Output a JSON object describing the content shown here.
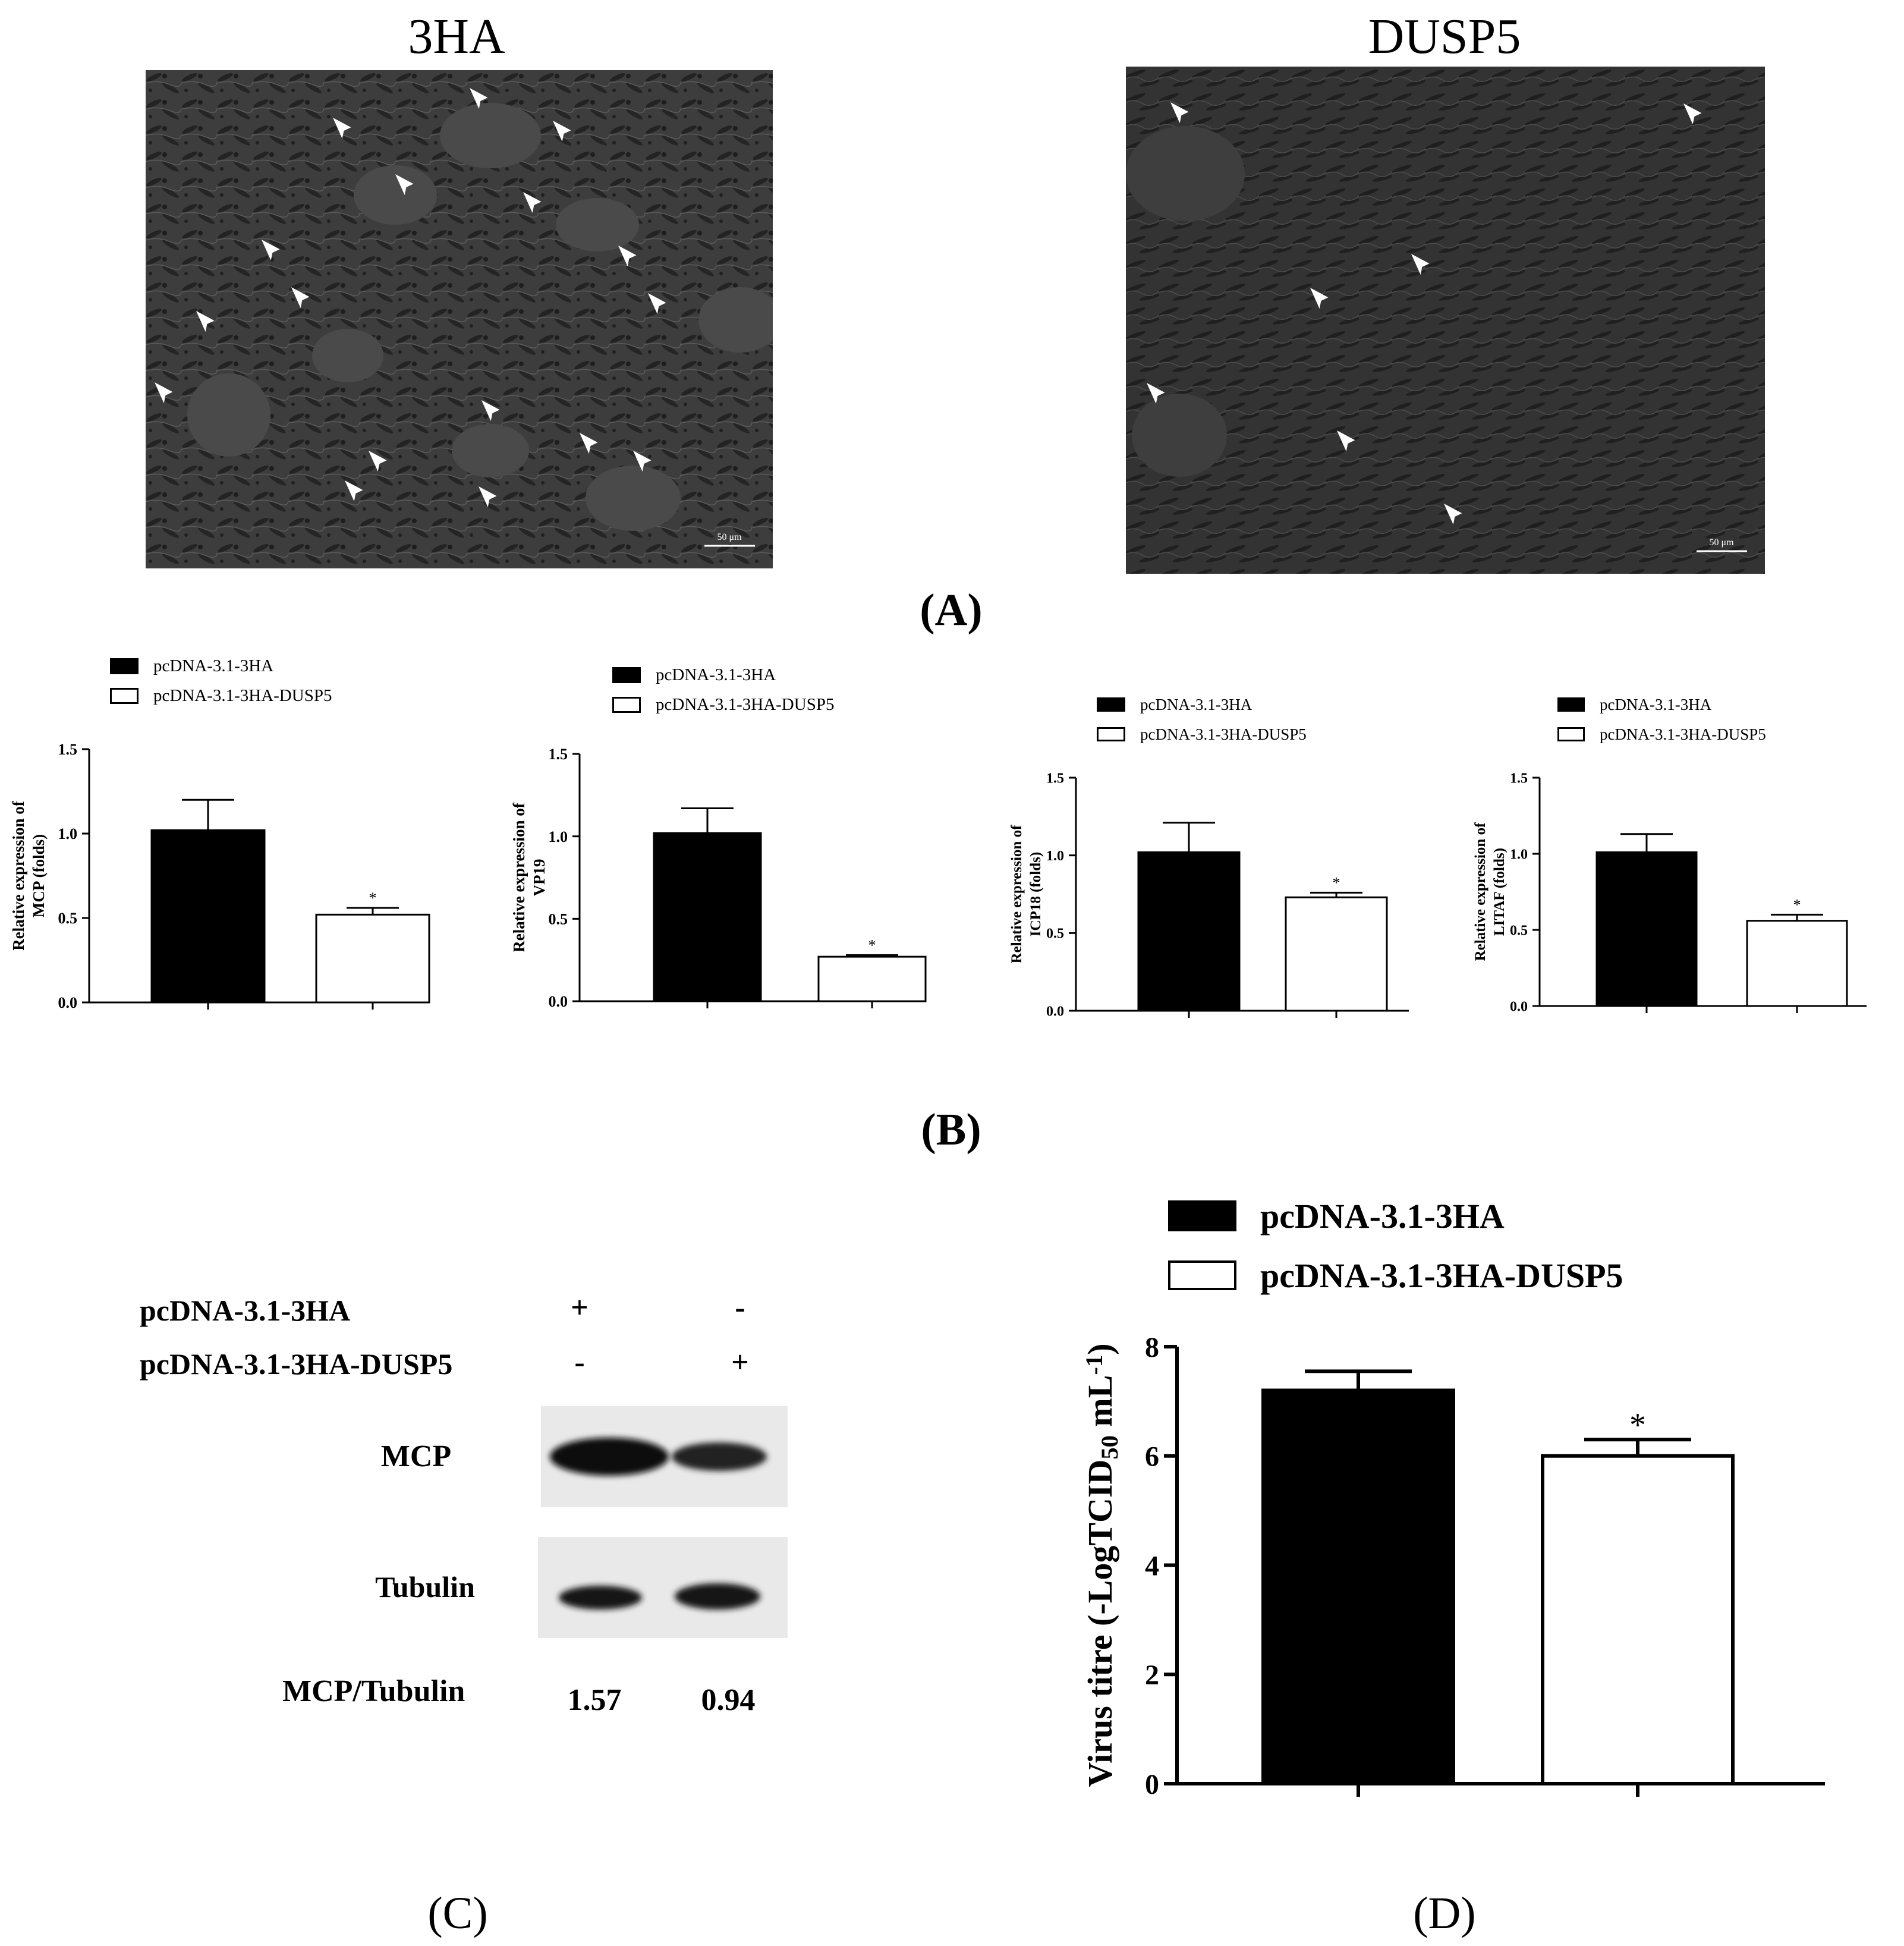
{
  "panel_a": {
    "label": "(A)",
    "images": [
      {
        "title": "3HA",
        "scale_bar": "50 μm"
      },
      {
        "title": "DUSP5",
        "scale_bar": "50 μm"
      }
    ]
  },
  "panel_b": {
    "label": "(B)",
    "legend": [
      "pcDNA-3.1-3HA",
      "pcDNA-3.1-3HA-DUSP5"
    ]
  },
  "panel_c": {
    "label": "(C)",
    "rows": [
      "pcDNA-3.1-3HA",
      "pcDNA-3.1-3HA-DUSP5"
    ],
    "signs": [
      [
        "+",
        "-"
      ],
      [
        "-",
        "+"
      ]
    ],
    "bands": [
      "MCP",
      "Tubulin"
    ],
    "ratio_label": "MCP/Tubulin",
    "ratios": [
      "1.57",
      "0.94"
    ]
  },
  "panel_d": {
    "label": "(D)",
    "legend": [
      "pcDNA-3.1-3HA",
      "pcDNA-3.1-3HA-DUSP5"
    ]
  },
  "colors": {
    "bar1": "#000000",
    "bar2": "#ffffff",
    "micro_bg": "#3b3b3b"
  },
  "chart_data": [
    {
      "type": "bar",
      "panel": "B",
      "categories": [
        "pcDNA-3.1-3HA",
        "pcDNA-3.1-3HA-DUSP5"
      ],
      "values": [
        1.02,
        0.52
      ],
      "errors": [
        0.18,
        0.04
      ],
      "significance": [
        "",
        "*"
      ],
      "ylabel": [
        "Relative expression of",
        "MCP (folds)"
      ],
      "ylim": [
        0,
        1.5
      ],
      "yticks": [
        "0.0",
        "0.5",
        "1.0",
        "1.5"
      ]
    },
    {
      "type": "bar",
      "panel": "B",
      "categories": [
        "pcDNA-3.1-3HA",
        "pcDNA-3.1-3HA-DUSP5"
      ],
      "values": [
        1.02,
        0.27
      ],
      "errors": [
        0.15,
        0.01
      ],
      "significance": [
        "",
        "*"
      ],
      "ylabel": [
        "Relative expression of",
        "VP19"
      ],
      "ylim": [
        0,
        1.5
      ],
      "yticks": [
        "0.0",
        "0.5",
        "1.0",
        "1.5"
      ]
    },
    {
      "type": "bar",
      "panel": "B",
      "categories": [
        "pcDNA-3.1-3HA",
        "pcDNA-3.1-3HA-DUSP5"
      ],
      "values": [
        1.02,
        0.73
      ],
      "errors": [
        0.19,
        0.03
      ],
      "significance": [
        "",
        "*"
      ],
      "ylabel": [
        "Relative expression of",
        "ICP18 (folds)"
      ],
      "ylim": [
        0,
        1.5
      ],
      "yticks": [
        "0.0",
        "0.5",
        "1.0",
        "1.5"
      ]
    },
    {
      "type": "bar",
      "panel": "B",
      "categories": [
        "pcDNA-3.1-3HA",
        "pcDNA-3.1-3HA-DUSP5"
      ],
      "values": [
        1.01,
        0.56
      ],
      "errors": [
        0.12,
        0.04
      ],
      "significance": [
        "",
        "*"
      ],
      "ylabel": [
        "Relative expression of",
        "LITAF (folds)"
      ],
      "ylim": [
        0,
        1.5
      ],
      "yticks": [
        "0.0",
        "0.5",
        "1.0",
        "1.5"
      ]
    },
    {
      "type": "bar",
      "panel": "D",
      "categories": [
        "pcDNA-3.1-3HA",
        "pcDNA-3.1-3HA-DUSP5"
      ],
      "values": [
        7.2,
        6.0
      ],
      "errors": [
        0.35,
        0.3
      ],
      "significance": [
        "",
        "*"
      ],
      "ylabel": "Virus titre (-LogTCID50 mL-1)",
      "ylim": [
        0,
        8
      ],
      "yticks": [
        "0",
        "2",
        "4",
        "6",
        "8"
      ]
    }
  ]
}
